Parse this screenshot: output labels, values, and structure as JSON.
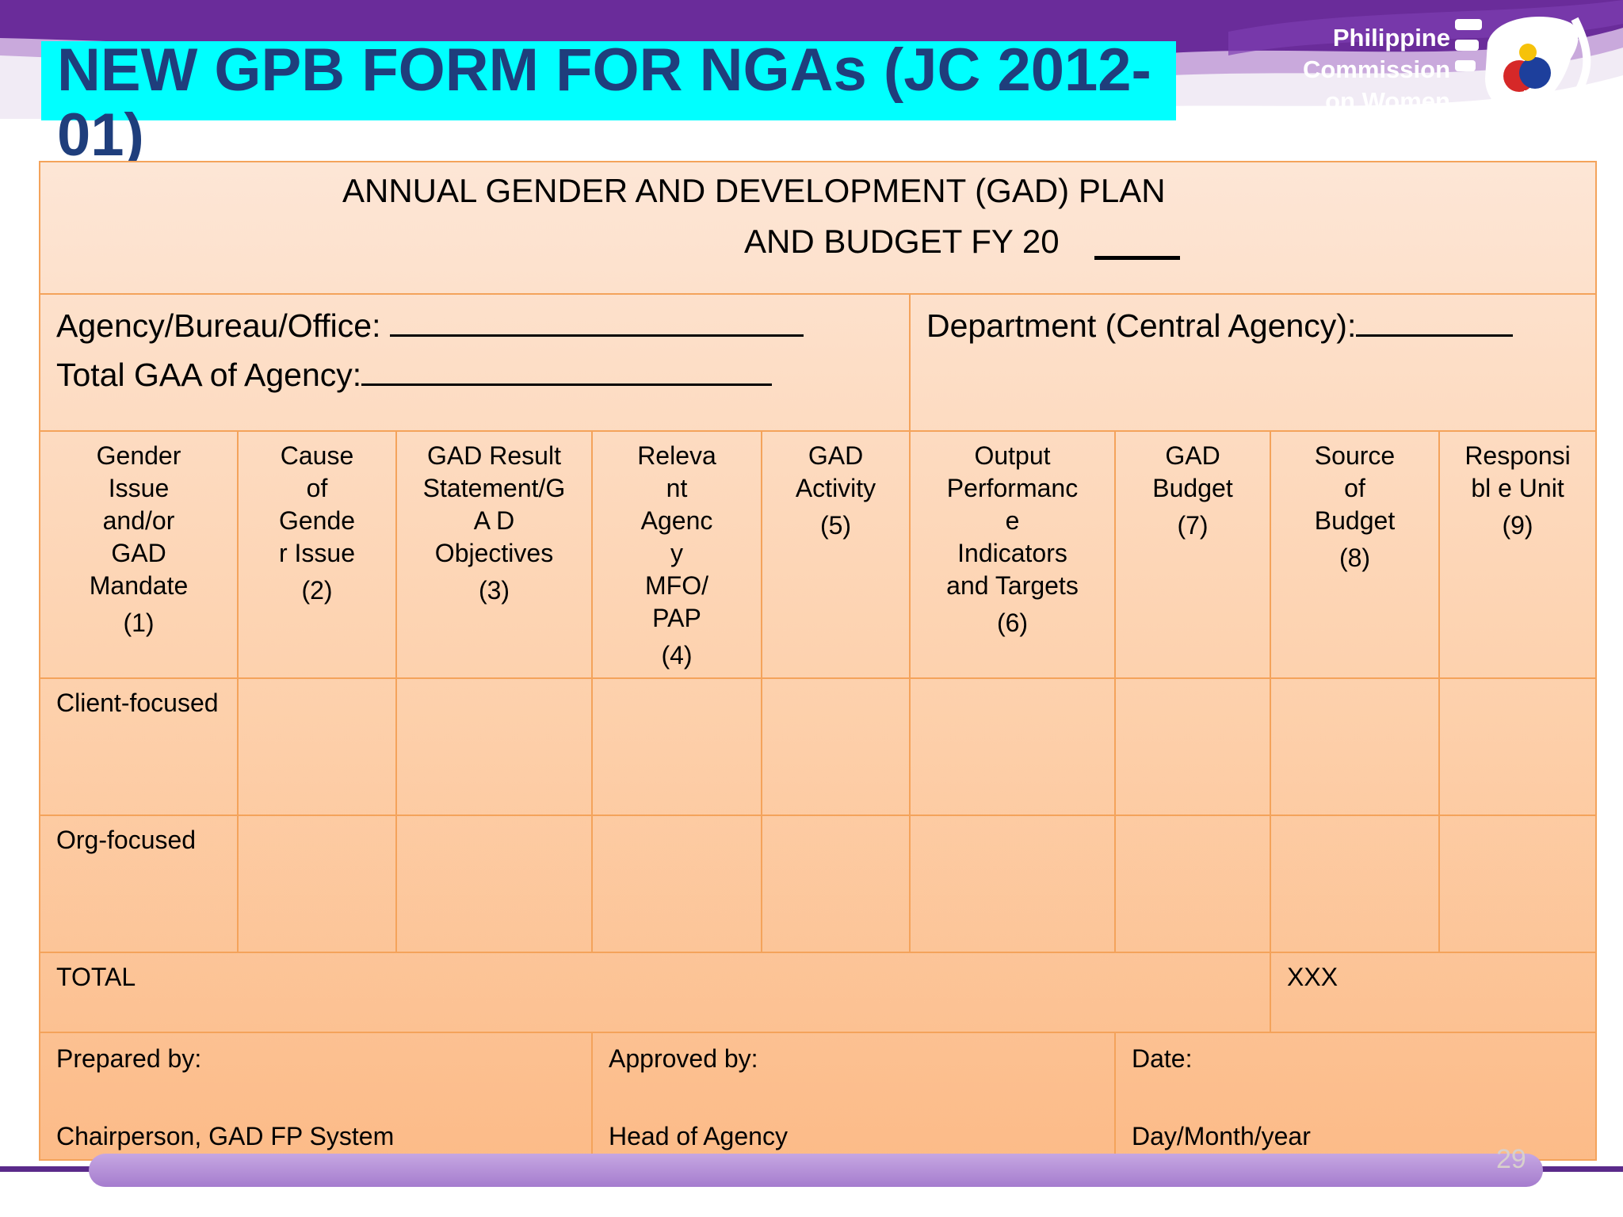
{
  "slide": {
    "title": "NEW GPB FORM FOR NGAs (JC 2012-01)",
    "page_number": "29",
    "colors": {
      "title_band": "#00ffff",
      "title_text": "#1f3e7c",
      "header_purple": "#6a2c9a",
      "form_peach": "#fdd0ab",
      "form_border": "#f4a35b"
    }
  },
  "logo": {
    "lines": [
      "Philippine",
      "Commission",
      "on Women"
    ],
    "icon": "pcw-dove-logo"
  },
  "form": {
    "plan_title_line1": "ANNUAL GENDER AND DEVELOPMENT (GAD) PLAN",
    "plan_title_line2": "AND BUDGET  FY 20",
    "agency_label": "Agency/Bureau/Office:",
    "total_gaa_label": "Total GAA of Agency:",
    "department_label": "Department (Central Agency):",
    "columns": [
      {
        "lines": [
          "Gender",
          "Issue",
          "and/or",
          "GAD",
          "Mandate"
        ],
        "num": "(1)"
      },
      {
        "lines": [
          "Cause",
          "of",
          "Gende",
          "r  Issue"
        ],
        "num": "(2)"
      },
      {
        "lines": [
          "GAD Result",
          "Statement/G",
          "A  D",
          "Objectives"
        ],
        "num": "(3)"
      },
      {
        "lines": [
          "Releva",
          "nt",
          "Agenc",
          "y",
          "MFO/",
          "PAP"
        ],
        "num": "(4)"
      },
      {
        "lines": [
          "GAD",
          "Activity"
        ],
        "num": "(5)"
      },
      {
        "lines": [
          "Output",
          "Performanc",
          "e",
          "Indicators",
          "and Targets"
        ],
        "num": "(6)"
      },
      {
        "lines": [
          "GAD",
          "Budget"
        ],
        "num": "(7)"
      },
      {
        "lines": [
          "Source",
          "of",
          "Budget"
        ],
        "num": "(8)"
      },
      {
        "lines": [
          "Responsi",
          "bl  e Unit"
        ],
        "num": "(9)"
      }
    ],
    "row_client": "Client-focused",
    "row_org": "Org-focused",
    "total_label": "TOTAL",
    "total_value": "XXX",
    "prepared_by": "Prepared by:",
    "prepared_sub": "Chairperson, GAD FP System",
    "approved_by": "Approved by:",
    "approved_sub": "Head of Agency",
    "date_label": "Date:",
    "date_sub": "Day/Month/year"
  }
}
